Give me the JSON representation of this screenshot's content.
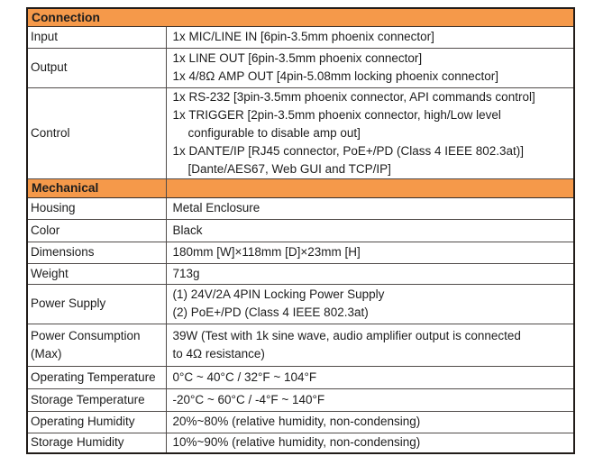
{
  "table": {
    "header_bg": "#F5994A",
    "sections": [
      {
        "title": "Connection",
        "rows": [
          {
            "label_lines": [
              "Input"
            ],
            "value_lines": [
              "1x MIC/LINE IN [6pin-3.5mm phoenix connector]"
            ]
          },
          {
            "label_lines": [
              "Output"
            ],
            "value_lines": [
              "1x LINE OUT [6pin-3.5mm phoenix connector]",
              "1x 4/8Ω AMP OUT [4pin-5.08mm locking phoenix connector]"
            ]
          },
          {
            "label_lines": [
              "Control"
            ],
            "value_lines": [
              "1x RS-232 [3pin-3.5mm phoenix connector, API commands control]",
              "1x TRIGGER [2pin-3.5mm phoenix connector, high/Low level",
              "configurable to disable amp out]",
              "1x DANTE/IP [RJ45 connector, PoE+/PD (Class 4 IEEE 802.3at)]",
              "[Dante/AES67, Web GUI and TCP/IP]"
            ]
          }
        ]
      },
      {
        "title": "Mechanical",
        "rows": [
          {
            "label_lines": [
              "Housing"
            ],
            "value_lines": [
              "Metal Enclosure"
            ]
          },
          {
            "label_lines": [
              "Color"
            ],
            "value_lines": [
              "Black"
            ]
          },
          {
            "label_lines": [
              "Dimensions"
            ],
            "value_lines": [
              "180mm [W]×118mm [D]×23mm [H]"
            ]
          },
          {
            "label_lines": [
              "Weight"
            ],
            "value_lines": [
              "713g"
            ]
          },
          {
            "label_lines": [
              "Power Supply"
            ],
            "value_lines": [
              "(1) 24V/2A 4PIN Locking Power Supply",
              "(2) PoE+/PD (Class 4 IEEE 802.3at)"
            ]
          },
          {
            "label_lines": [
              "Power Consumption",
              "(Max)"
            ],
            "value_lines": [
              "39W (Test with 1k sine wave, audio amplifier output is connected",
              "to 4Ω resistance)"
            ]
          },
          {
            "label_lines": [
              "Operating Temperature"
            ],
            "value_lines": [
              "0°C ~ 40°C / 32°F ~ 104°F"
            ]
          },
          {
            "label_lines": [
              "Storage Temperature"
            ],
            "value_lines": [
              "-20°C ~ 60°C / -4°F ~ 140°F"
            ]
          },
          {
            "label_lines": [
              "Operating Humidity"
            ],
            "value_lines": [
              "20%~80% (relative humidity, non-condensing)"
            ]
          },
          {
            "label_lines": [
              "Storage Humidity"
            ],
            "value_lines": [
              "10%~90% (relative humidity, non-condensing)"
            ]
          }
        ]
      }
    ]
  }
}
